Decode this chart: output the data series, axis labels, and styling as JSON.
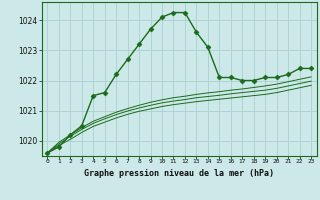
{
  "hours": [
    0,
    1,
    2,
    3,
    4,
    5,
    6,
    7,
    8,
    9,
    10,
    11,
    12,
    13,
    14,
    15,
    16,
    17,
    18,
    19,
    20,
    21,
    22,
    23
  ],
  "pressure_main": [
    1019.6,
    1019.8,
    1020.2,
    1020.5,
    1021.5,
    1021.6,
    1022.2,
    1022.7,
    1023.2,
    1023.7,
    1024.1,
    1024.25,
    1024.25,
    1023.6,
    1023.1,
    1022.1,
    1022.1,
    1022.0,
    1022.0,
    1022.1,
    1022.1,
    1022.2,
    1022.4,
    1022.4
  ],
  "pressure_line1": [
    1019.6,
    1019.85,
    1020.05,
    1020.28,
    1020.48,
    1020.62,
    1020.76,
    1020.88,
    1020.98,
    1021.06,
    1021.14,
    1021.2,
    1021.25,
    1021.3,
    1021.34,
    1021.38,
    1021.42,
    1021.46,
    1021.5,
    1021.54,
    1021.6,
    1021.68,
    1021.76,
    1021.84
  ],
  "pressure_line2": [
    1019.6,
    1019.9,
    1020.15,
    1020.38,
    1020.58,
    1020.73,
    1020.87,
    1020.99,
    1021.09,
    1021.18,
    1021.26,
    1021.32,
    1021.37,
    1021.43,
    1021.47,
    1021.51,
    1021.56,
    1021.6,
    1021.64,
    1021.68,
    1021.74,
    1021.82,
    1021.9,
    1021.98
  ],
  "pressure_line3": [
    1019.6,
    1019.95,
    1020.2,
    1020.44,
    1020.65,
    1020.8,
    1020.95,
    1021.07,
    1021.18,
    1021.28,
    1021.36,
    1021.43,
    1021.48,
    1021.54,
    1021.59,
    1021.63,
    1021.68,
    1021.72,
    1021.77,
    1021.82,
    1021.88,
    1021.96,
    1022.04,
    1022.12
  ],
  "ylim": [
    1019.5,
    1024.6
  ],
  "yticks": [
    1020,
    1021,
    1022,
    1023,
    1024
  ],
  "line_color": "#1a6b1a",
  "bg_color": "#cce8e8",
  "grid_color": "#aad0d0",
  "xlabel": "Graphe pression niveau de la mer (hPa)"
}
